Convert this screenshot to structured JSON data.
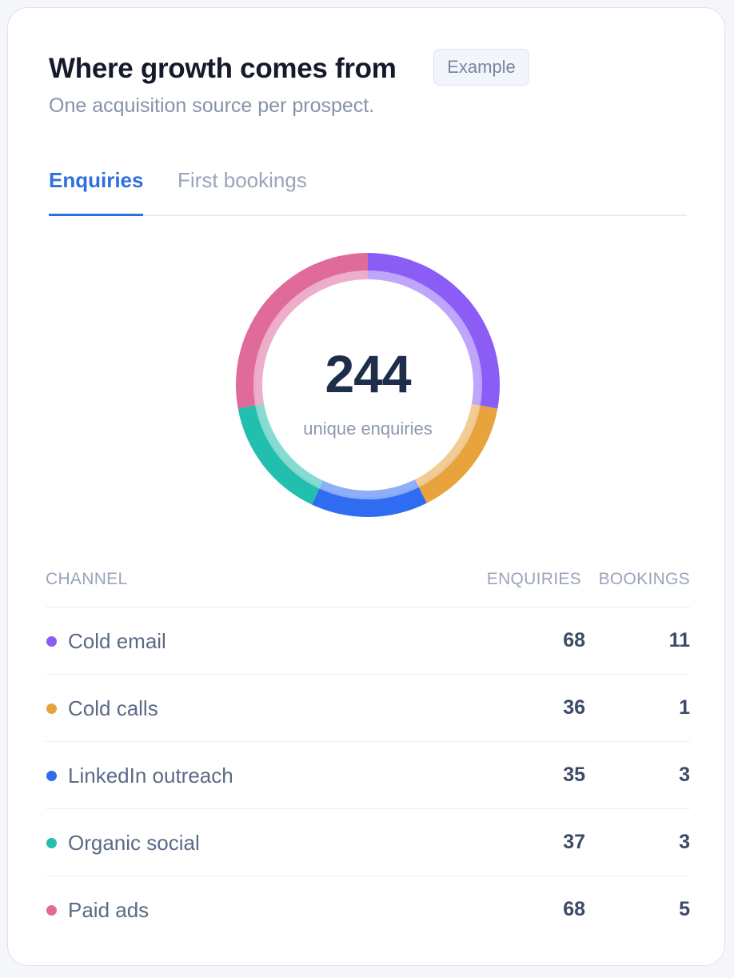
{
  "card": {
    "title": "Where growth comes from",
    "badge": "Example",
    "subtitle": "One acquisition source per prospect."
  },
  "tabs": [
    {
      "label": "Enquiries",
      "active": true
    },
    {
      "label": "First bookings",
      "active": false
    }
  ],
  "donut": {
    "total": "244",
    "caption": "unique enquiries"
  },
  "table": {
    "headers": {
      "channel": "CHANNEL",
      "enquiries": "ENQUIRIES",
      "bookings": "BOOKINGS"
    },
    "rows": [
      {
        "channel": "Cold email",
        "enquiries": "68",
        "bookings": "11",
        "color": "#8b5cf6"
      },
      {
        "channel": "Cold calls",
        "enquiries": "36",
        "bookings": "1",
        "color": "#e8a33d"
      },
      {
        "channel": "LinkedIn outreach",
        "enquiries": "35",
        "bookings": "3",
        "color": "#2f6cf2"
      },
      {
        "channel": "Organic social",
        "enquiries": "37",
        "bookings": "3",
        "color": "#22bfae"
      },
      {
        "channel": "Paid ads",
        "enquiries": "68",
        "bookings": "5",
        "color": "#e06a9a"
      }
    ]
  },
  "chart_data": {
    "type": "pie",
    "categories": [
      "Cold email",
      "Cold calls",
      "LinkedIn outreach",
      "Organic social",
      "Paid ads"
    ],
    "values": [
      68,
      36,
      35,
      37,
      68
    ],
    "colors": [
      "#8b5cf6",
      "#e8a33d",
      "#2f6cf2",
      "#22bfae",
      "#e06a9a"
    ],
    "title": "244",
    "subtitle": "unique enquiries"
  }
}
